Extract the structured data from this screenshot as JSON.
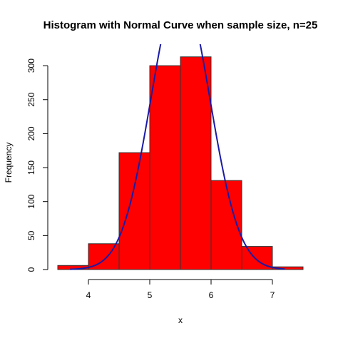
{
  "chart_data": {
    "type": "bar",
    "title": "Histogram with Normal Curve when sample size, n=25",
    "xlabel": "x",
    "ylabel": "Frequency",
    "bins": [
      {
        "start": 3.5,
        "end": 4.0,
        "count": 6
      },
      {
        "start": 4.0,
        "end": 4.5,
        "count": 38
      },
      {
        "start": 4.5,
        "end": 5.0,
        "count": 172
      },
      {
        "start": 5.0,
        "end": 5.5,
        "count": 300
      },
      {
        "start": 5.5,
        "end": 6.0,
        "count": 313
      },
      {
        "start": 6.0,
        "end": 6.5,
        "count": 131
      },
      {
        "start": 6.5,
        "end": 7.0,
        "count": 34
      },
      {
        "start": 7.0,
        "end": 7.5,
        "count": 4
      }
    ],
    "xlim": [
      3.5,
      7.5
    ],
    "ylim": [
      0,
      300
    ],
    "x_ticks": [
      "4",
      "5",
      "6",
      "7"
    ],
    "x_tick_values": [
      4,
      5,
      6,
      7
    ],
    "y_ticks": [
      "0",
      "50",
      "100",
      "150",
      "200",
      "250",
      "300"
    ],
    "y_tick_values": [
      0,
      50,
      100,
      150,
      200,
      250,
      300
    ],
    "normal_curve": {
      "mean": 5.5,
      "sd": 0.48,
      "n": 1000,
      "binwidth": 0.5,
      "x_from": 3.7,
      "x_to": 7.2
    },
    "bar_color": "#ff0000",
    "bar_edge_color": "#333333",
    "curve_color": "#1a1aa6"
  }
}
